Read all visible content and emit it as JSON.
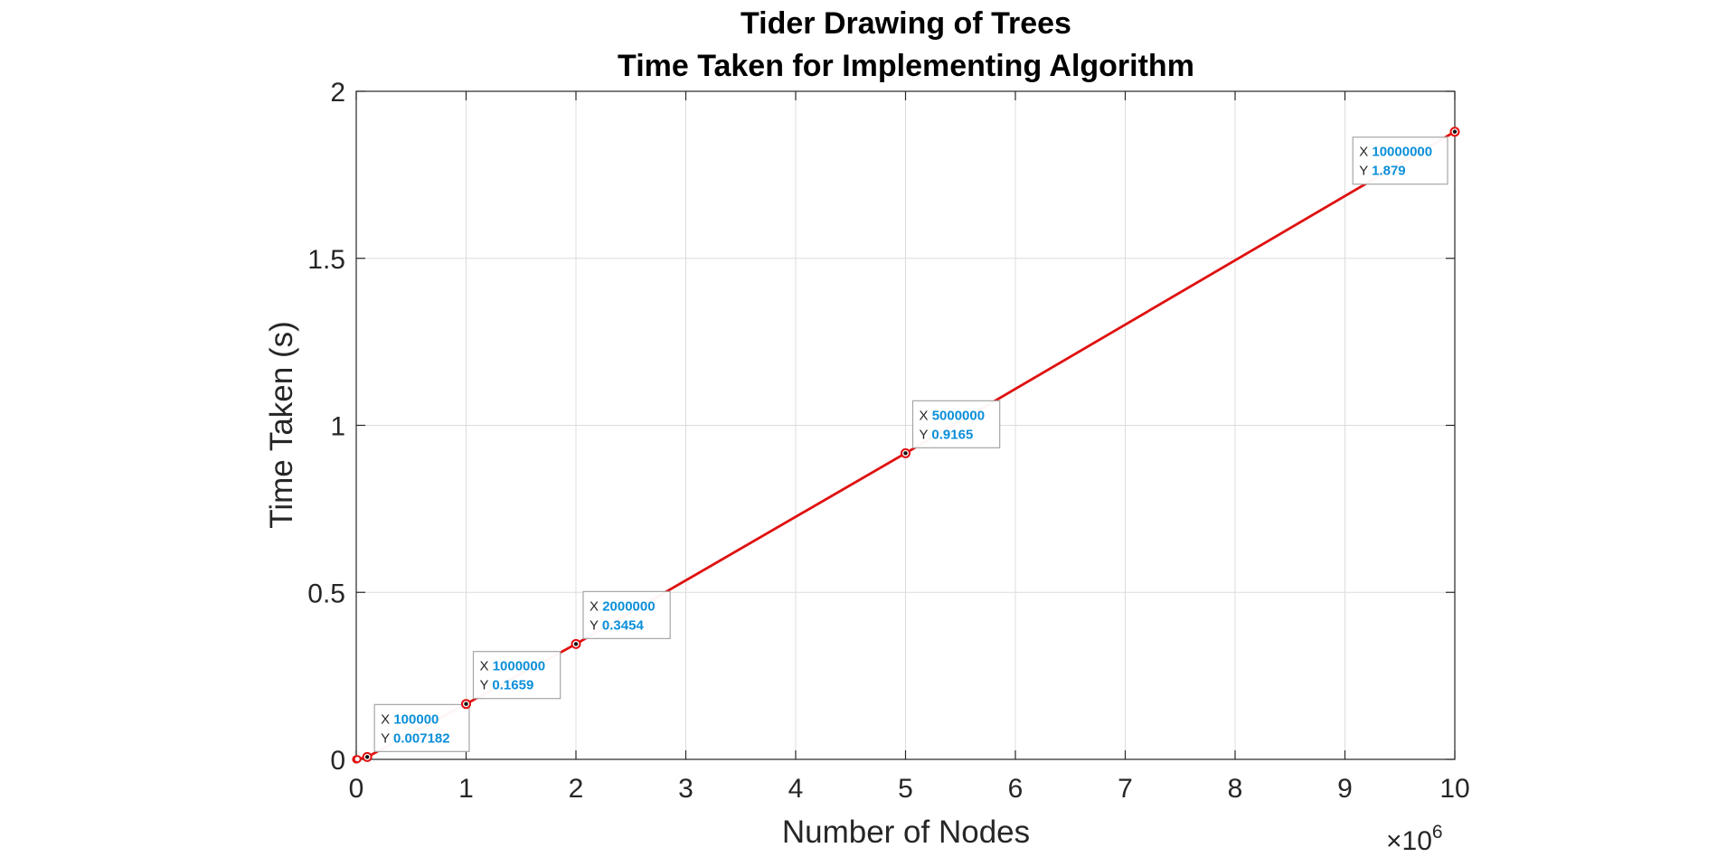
{
  "chart_data": {
    "type": "line",
    "title": [
      "Tider Drawing of Trees",
      "Time Taken for Implementing Algorithm"
    ],
    "xlabel": "Number of Nodes",
    "ylabel": "Time Taken (s)",
    "xlim": [
      0,
      10000000
    ],
    "ylim": [
      0,
      2
    ],
    "x_tick_scale_label": "×10",
    "x_tick_scale_exponent": "6",
    "x_ticks": [
      0,
      1,
      2,
      3,
      4,
      5,
      6,
      7,
      8,
      9,
      10
    ],
    "y_ticks": [
      "0",
      "0.5",
      "1",
      "1.5",
      "2"
    ],
    "grid": true,
    "line_color": "#e01010",
    "series": [
      {
        "x": [
          10,
          100,
          1000,
          10000,
          100000,
          1000000,
          2000000,
          5000000,
          10000000
        ],
        "y": [
          2e-05,
          4e-05,
          0.0002,
          0.0008,
          0.007182,
          0.1659,
          0.3454,
          0.9165,
          1.879
        ]
      }
    ],
    "datatips": [
      {
        "x_key": "X",
        "y_key": "Y",
        "x": "100000",
        "y": "0.007182"
      },
      {
        "x_key": "X",
        "y_key": "Y",
        "x": "1000000",
        "y": "0.1659"
      },
      {
        "x_key": "X",
        "y_key": "Y",
        "x": "2000000",
        "y": "0.3454"
      },
      {
        "x_key": "X",
        "y_key": "Y",
        "x": "5000000",
        "y": "0.9165"
      },
      {
        "x_key": "X",
        "y_key": "Y",
        "x": "10000000",
        "y": "1.879"
      }
    ]
  }
}
